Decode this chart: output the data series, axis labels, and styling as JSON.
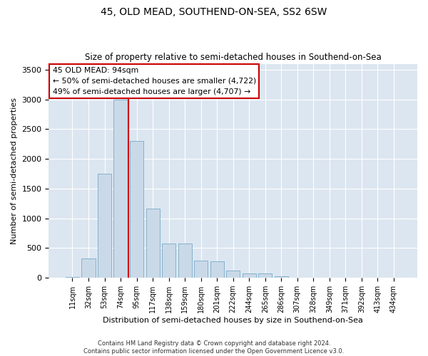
{
  "title": "45, OLD MEAD, SOUTHEND-ON-SEA, SS2 6SW",
  "subtitle": "Size of property relative to semi-detached houses in Southend-on-Sea",
  "xlabel": "Distribution of semi-detached houses by size in Southend-on-Sea",
  "ylabel": "Number of semi-detached properties",
  "footer1": "Contains HM Land Registry data © Crown copyright and database right 2024.",
  "footer2": "Contains public sector information licensed under the Open Government Licence v3.0.",
  "annotation_title": "45 OLD MEAD: 94sqm",
  "annotation_line2": "← 50% of semi-detached houses are smaller (4,722)",
  "annotation_line3": "49% of semi-detached houses are larger (4,707) →",
  "bar_color": "#c9d9e8",
  "bar_edge_color": "#7aaac8",
  "vline_color": "#cc0000",
  "annotation_box_color": "#ffffff",
  "annotation_box_edge": "#cc0000",
  "bg_color": "#dce6f0",
  "title_color": "#000000",
  "categories": [
    "11sqm",
    "32sqm",
    "53sqm",
    "74sqm",
    "95sqm",
    "117sqm",
    "138sqm",
    "159sqm",
    "180sqm",
    "201sqm",
    "222sqm",
    "244sqm",
    "265sqm",
    "286sqm",
    "307sqm",
    "328sqm",
    "349sqm",
    "371sqm",
    "392sqm",
    "413sqm",
    "434sqm"
  ],
  "values": [
    15,
    325,
    1750,
    3000,
    2300,
    1160,
    575,
    575,
    285,
    275,
    125,
    70,
    70,
    30,
    8,
    5,
    3,
    1,
    1,
    0,
    0
  ],
  "vline_x": 3.5,
  "ylim": [
    0,
    3600
  ],
  "yticks": [
    0,
    500,
    1000,
    1500,
    2000,
    2500,
    3000,
    3500
  ],
  "figsize": [
    6.0,
    5.0
  ],
  "dpi": 100
}
